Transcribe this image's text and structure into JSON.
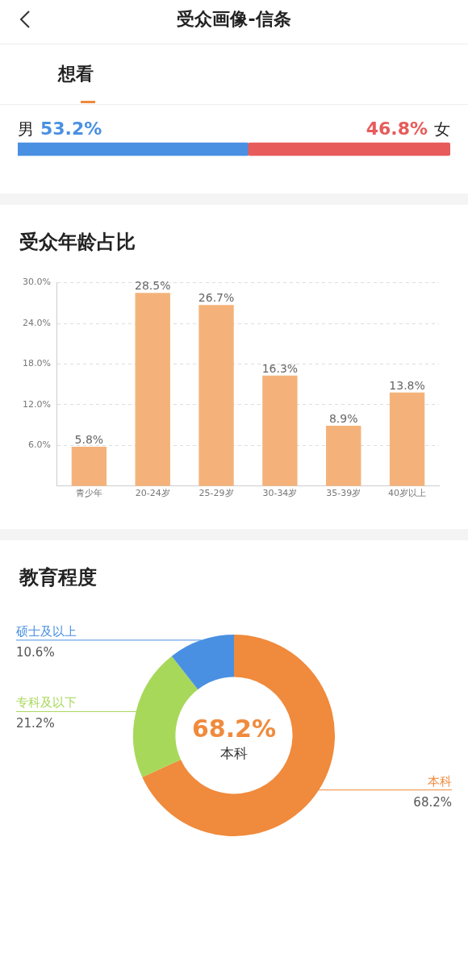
{
  "chart_data": [
    {
      "type": "bar",
      "title": "受众画像-信条",
      "subtitle": "想看",
      "orientation": "horizontal",
      "stacked": true,
      "categories": [
        null
      ],
      "tick_labels": false,
      "xlim": [
        0,
        100
      ],
      "series": [
        {
          "name": "男",
          "color": "#4a90e2",
          "values": [
            53.2
          ],
          "value_labels": [
            "53.2%"
          ]
        },
        {
          "name": "女",
          "color": "#e85b5b",
          "values": [
            46.8
          ],
          "value_labels": [
            "46.8%"
          ]
        }
      ]
    },
    {
      "type": "bar",
      "title": "受众年龄占比",
      "categories": [
        "青少年",
        "20-24岁",
        "25-29岁",
        "30-34岁",
        "35-39岁",
        "40岁以上"
      ],
      "values": [
        5.8,
        28.5,
        26.7,
        16.3,
        8.9,
        13.8
      ],
      "value_labels": [
        "5.8%",
        "28.5%",
        "26.7%",
        "16.3%",
        "8.9%",
        "13.8%"
      ],
      "color": "#f4b27a",
      "ylim": [
        0,
        30
      ],
      "yticks": [
        {
          "value": 6,
          "label": "6.0%"
        },
        {
          "value": 12,
          "label": "12.0%"
        },
        {
          "value": 18,
          "label": "18.0%"
        },
        {
          "value": 24,
          "label": "24.0%"
        },
        {
          "value": 30,
          "label": "30.0%"
        }
      ],
      "grid": "y"
    },
    {
      "type": "donut",
      "title": "教育程度",
      "categories": [
        "本科",
        "专科及以下",
        "硕士及以上"
      ],
      "values": [
        68.2,
        21.2,
        10.6
      ],
      "value_labels": [
        "68.2%",
        "21.2%",
        "10.6%"
      ],
      "colors": [
        "#f08a3c",
        "#a8d85a",
        "#4a90e2"
      ],
      "annotations": [
        "68.2%",
        "本科"
      ]
    }
  ]
}
